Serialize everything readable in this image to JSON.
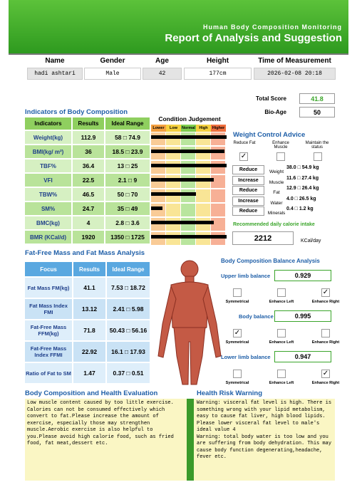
{
  "header": {
    "subtitle": "Human Body Composition Monitoring",
    "title": "Report of Analysis and Suggestion"
  },
  "info": {
    "labels": [
      "Name",
      "Gender",
      "Age",
      "Height",
      "Time of Measurement"
    ],
    "values": [
      "hadi ashtari",
      "Male",
      "42",
      "177cm",
      "2026-02-08   20:18"
    ]
  },
  "score": {
    "total_score_label": "Total Score",
    "total_score": "41.8",
    "bio_age_label": "Bio-Age",
    "bio_age": "50"
  },
  "indicators": {
    "title": "Indicators of Body Composition",
    "headers": [
      "Indicators",
      "Results",
      "Ideal Range"
    ],
    "rows": [
      [
        "Weight(kg)",
        "112.9",
        "58 □ 74.9"
      ],
      [
        "BMI(kg/ m²)",
        "36",
        "18.5 □ 23.9"
      ],
      [
        "TBF%",
        "36.4",
        "13 □ 25"
      ],
      [
        "VFI",
        "22.5",
        "2.1 □ 9"
      ],
      [
        "TBW%",
        "46.5",
        "50 □ 70"
      ],
      [
        "SM%",
        "24.7",
        "35 □ 49"
      ],
      [
        "BMC(kg)",
        "4",
        "2.8 □ 3.6"
      ],
      [
        "BMR (KCal/d)",
        "1920",
        "1350 □ 1725"
      ]
    ],
    "condition_title": "Condition Judgement",
    "levels": [
      "Lower",
      "Low",
      "Normal",
      "High",
      "Higher"
    ]
  },
  "weight_control": {
    "title": "Weight Control Advice",
    "options": [
      "Reduce Fat",
      "Enhance Muscle",
      "Maintain the status"
    ],
    "rows": [
      [
        "Reduce",
        "Weight",
        "38.0 □ 54.9 kg"
      ],
      [
        "Increase",
        "Muscle",
        "11.6 □ 27.4 kg"
      ],
      [
        "Reduce",
        "Fat",
        "12.9 □ 26.4 kg"
      ],
      [
        "Increase",
        "Water",
        "4.0 □ 26.5 kg"
      ],
      [
        "Reduce",
        "Minerals",
        "0.4 □ 1.2 kg"
      ]
    ],
    "calorie_label": "Recommended daily calorie intake",
    "calorie": "2212",
    "calorie_unit": "KCal/day"
  },
  "fat_free": {
    "title": "Fat-Free Mass and Fat Mass Analysis",
    "headers": [
      "Focus",
      "Results",
      "Ideal Range"
    ],
    "rows": [
      [
        "Fat Mass FM(kg)",
        "41.1",
        "7.53 □ 18.72"
      ],
      [
        "Fat Mass Index FMI",
        "13.12",
        "2.41 □ 5.98"
      ],
      [
        "Fat-Free Mass FFM(kg)",
        "71.8",
        "50.43 □ 56.16"
      ],
      [
        "Fat-Free Mass Index FFMI",
        "22.92",
        "16.1 □ 17.93"
      ],
      [
        "Ratio of Fat to SM",
        "1.47",
        "0.37 □ 0.51"
      ]
    ]
  },
  "balance": {
    "title": "Body Composition Balance Analysis",
    "options": [
      "Symmetrical",
      "Enhance Left",
      "Enhance Right"
    ],
    "items": [
      {
        "label": "Upper limb balance",
        "value": "0.929",
        "checked": 2
      },
      {
        "label": "Body balance",
        "value": "0.995",
        "checked": 0
      },
      {
        "label": "Lower limb balance",
        "value": "0.947",
        "checked": 2
      }
    ]
  },
  "evaluation": {
    "title": "Body Composition and Health Evaluation",
    "text": "Low muscle content caused by too little exercise. Calories can not be consumed effectively which convert to fat.Please increase the amount of exercise, especially those may strengthen muscle.Aerobic exercise is also helpful to you.Please avoid high calorie food, such as fried food, fat meat,dessert etc."
  },
  "risk": {
    "title": "Health Risk Warning",
    "text": "Warning: visceral fat level is high. There is something wrong with your lipid metabolism, easy to cause fat liver, high blood lipids. Please lower visceral fat level to male's ideal value 4\nWarning: total body water is too low and you are suffering from body dehydration. This may cause body function degenerating,headache, fever etc."
  }
}
